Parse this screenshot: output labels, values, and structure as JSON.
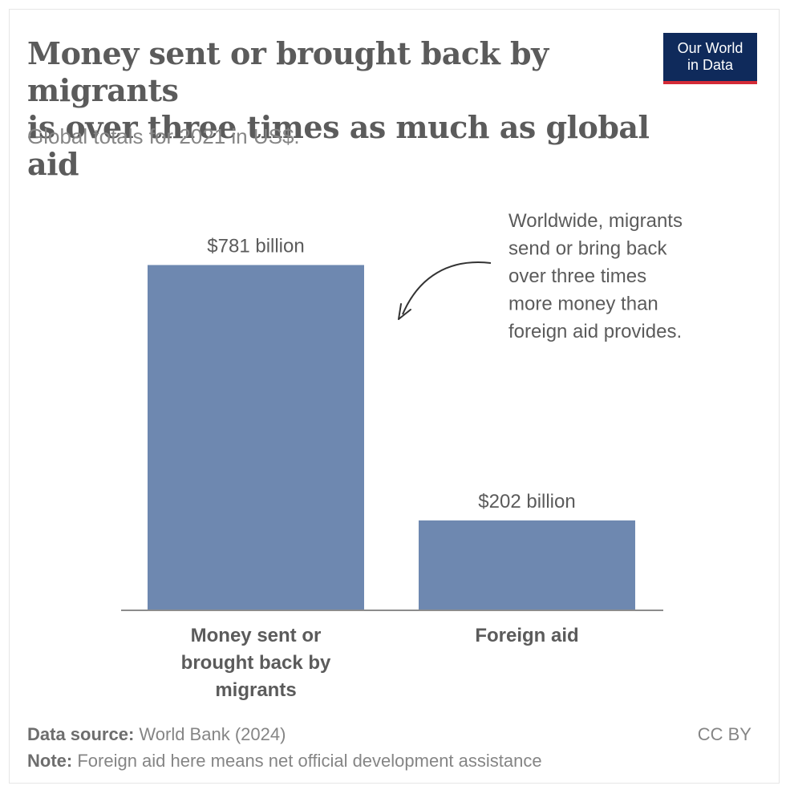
{
  "header": {
    "title_line1": "Money sent or brought back by migrants",
    "title_line2": "is over three times as much as global aid",
    "subtitle": "Global totals for 2021 in US$."
  },
  "logo": {
    "line1": "Our World",
    "line2": "in Data"
  },
  "chart_data": {
    "type": "bar",
    "categories": [
      [
        "Money sent or",
        "brought back by",
        "migrants"
      ],
      [
        "Foreign aid"
      ]
    ],
    "values": [
      781,
      202
    ],
    "value_labels": [
      "$781 billion",
      "$202 billion"
    ],
    "ylim": [
      0,
      800
    ],
    "grid": false,
    "bar_color": "#6e88b0",
    "annotation": {
      "lines": [
        "Worldwide, migrants",
        "send or bring back",
        "over three times",
        "more money than",
        "foreign aid provides."
      ],
      "target_bar": 0
    }
  },
  "footer": {
    "source_label": "Data source:",
    "source_text": " World Bank (2024)",
    "note_label": "Note:",
    "note_text": " Foreign aid here means net official development assistance",
    "license": "CC BY"
  }
}
